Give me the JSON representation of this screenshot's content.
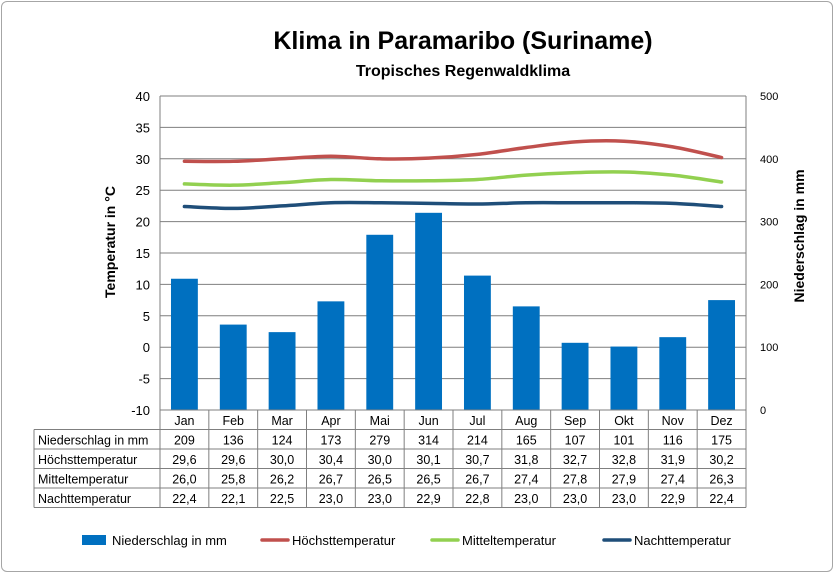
{
  "chart_data": {
    "type": "bar",
    "title": "Klima in Paramaribo (Suriname)",
    "subtitle": "Tropisches Regenwaldklima",
    "categories": [
      "Jan",
      "Feb",
      "Mar",
      "Apr",
      "Mai",
      "Jun",
      "Jul",
      "Aug",
      "Sep",
      "Okt",
      "Nov",
      "Dez"
    ],
    "ylabel_left": "Temperatur in °C",
    "ylabel_right": "Niederschlag in mm",
    "ylim_left": [
      -10,
      40
    ],
    "yticks_left": [
      "40",
      "35",
      "30",
      "25",
      "20",
      "15",
      "10",
      "5",
      "0",
      "-5",
      "-10"
    ],
    "ylim_right": [
      0,
      500
    ],
    "yticks_right": [
      "500",
      "400",
      "300",
      "200",
      "100",
      "0"
    ],
    "grid": true,
    "legend_position": "bottom",
    "series": [
      {
        "name": "Niederschlag in mm",
        "type": "bar",
        "axis": "right",
        "color": "#0070c0",
        "values": [
          209,
          136,
          124,
          173,
          279,
          314,
          214,
          165,
          107,
          101,
          116,
          175
        ],
        "display": [
          "209",
          "136",
          "124",
          "173",
          "279",
          "314",
          "214",
          "165",
          "107",
          "101",
          "116",
          "175"
        ]
      },
      {
        "name": "Höchsttemperatur",
        "type": "line",
        "axis": "left",
        "color": "#c0504d",
        "values": [
          29.6,
          29.6,
          30.0,
          30.4,
          30.0,
          30.1,
          30.7,
          31.8,
          32.7,
          32.8,
          31.9,
          30.2
        ],
        "display": [
          "29,6",
          "29,6",
          "30,0",
          "30,4",
          "30,0",
          "30,1",
          "30,7",
          "31,8",
          "32,7",
          "32,8",
          "31,9",
          "30,2"
        ]
      },
      {
        "name": "Mitteltemperatur",
        "type": "line",
        "axis": "left",
        "color": "#92d050",
        "values": [
          26.0,
          25.8,
          26.2,
          26.7,
          26.5,
          26.5,
          26.7,
          27.4,
          27.8,
          27.9,
          27.4,
          26.3
        ],
        "display": [
          "26,0",
          "25,8",
          "26,2",
          "26,7",
          "26,5",
          "26,5",
          "26,7",
          "27,4",
          "27,8",
          "27,9",
          "27,4",
          "26,3"
        ]
      },
      {
        "name": "Nachttemperatur",
        "type": "line",
        "axis": "left",
        "color": "#1f4e79",
        "values": [
          22.4,
          22.1,
          22.5,
          23.0,
          23.0,
          22.9,
          22.8,
          23.0,
          23.0,
          23.0,
          22.9,
          22.4
        ],
        "display": [
          "22,4",
          "22,1",
          "22,5",
          "23,0",
          "23,0",
          "22,9",
          "22,8",
          "23,0",
          "23,0",
          "23,0",
          "22,9",
          "22,4"
        ]
      }
    ]
  }
}
